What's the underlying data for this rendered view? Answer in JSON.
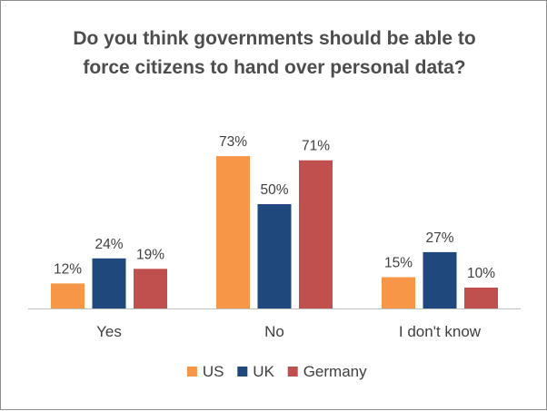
{
  "chart_data": {
    "type": "bar",
    "title_lines": [
      "Do you think governments should be able to",
      "force citizens to hand over personal data?"
    ],
    "categories": [
      "Yes",
      "No",
      "I don't know"
    ],
    "series": [
      {
        "name": "US",
        "values": [
          12,
          73,
          15
        ],
        "color": "#f79646"
      },
      {
        "name": "UK",
        "values": [
          24,
          50,
          27
        ],
        "color": "#1f497d"
      },
      {
        "name": "Germany",
        "values": [
          19,
          71,
          10
        ],
        "color": "#c0504d"
      }
    ],
    "value_suffix": "%",
    "ylim": [
      0,
      100
    ],
    "grid": false,
    "legend_position": "bottom"
  }
}
